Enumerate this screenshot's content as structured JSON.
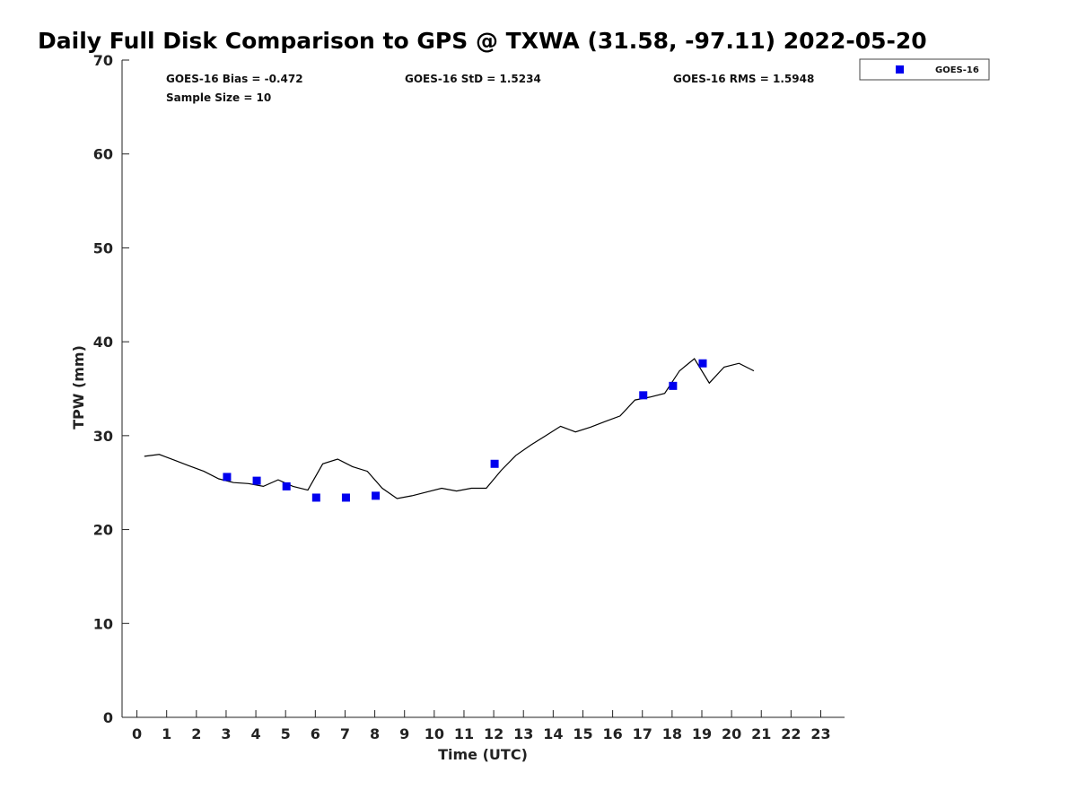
{
  "chart_data": {
    "type": "scatter",
    "title": "Daily Full Disk Comparison to GPS @ TXWA (31.58, -97.11) 2022-05-20",
    "xlabel": "Time (UTC)",
    "ylabel": "TPW (mm)",
    "xlim": [
      -0.5,
      23.8
    ],
    "ylim": [
      0,
      70
    ],
    "x_ticks": [
      0,
      1,
      2,
      3,
      4,
      5,
      6,
      7,
      8,
      9,
      10,
      11,
      12,
      13,
      14,
      15,
      16,
      17,
      18,
      19,
      20,
      21,
      22,
      23
    ],
    "y_ticks": [
      0,
      10,
      20,
      30,
      40,
      50,
      60,
      70
    ],
    "grid": false,
    "legend_position": "top-right",
    "stats": {
      "bias": "GOES-16 Bias = -0.472",
      "std": "GOES-16 StD = 1.5234",
      "rms": "GOES-16 RMS = 1.5948",
      "sample": "Sample Size = 10"
    },
    "series": [
      {
        "name": "GOES-16",
        "kind": "scatter",
        "color": "#0000ee",
        "x": [
          3.03,
          4.03,
          5.03,
          6.03,
          7.03,
          8.03,
          12.03,
          17.03,
          18.03,
          19.03
        ],
        "y": [
          25.6,
          25.2,
          24.6,
          23.4,
          23.4,
          23.6,
          27.0,
          34.3,
          35.3,
          37.7
        ]
      },
      {
        "kind": "line",
        "color": "#000000",
        "x": [
          0.25,
          0.75,
          1.25,
          1.75,
          2.25,
          2.75,
          3.25,
          3.75,
          4.25,
          4.75,
          5.25,
          5.75,
          6.25,
          6.75,
          7.25,
          7.75,
          8.25,
          8.75,
          9.25,
          9.75,
          10.25,
          10.75,
          11.25,
          11.75,
          12.25,
          12.75,
          13.25,
          13.75,
          14.25,
          14.75,
          15.25,
          15.75,
          16.25,
          16.75,
          17.25,
          17.75,
          18.25,
          18.75,
          19.25,
          19.75,
          20.25,
          20.75
        ],
        "y": [
          27.8,
          28.0,
          27.4,
          26.8,
          26.2,
          25.4,
          25.0,
          24.9,
          24.6,
          25.3,
          24.6,
          24.2,
          27.0,
          27.5,
          26.7,
          26.2,
          24.4,
          23.3,
          23.6,
          24.0,
          24.4,
          24.1,
          24.4,
          24.4,
          26.3,
          27.9,
          29.0,
          30.0,
          31.0,
          30.4,
          30.9,
          31.5,
          32.1,
          33.8,
          34.1,
          34.5,
          36.9,
          38.2,
          35.6,
          37.3,
          37.7,
          36.9
        ]
      }
    ]
  }
}
